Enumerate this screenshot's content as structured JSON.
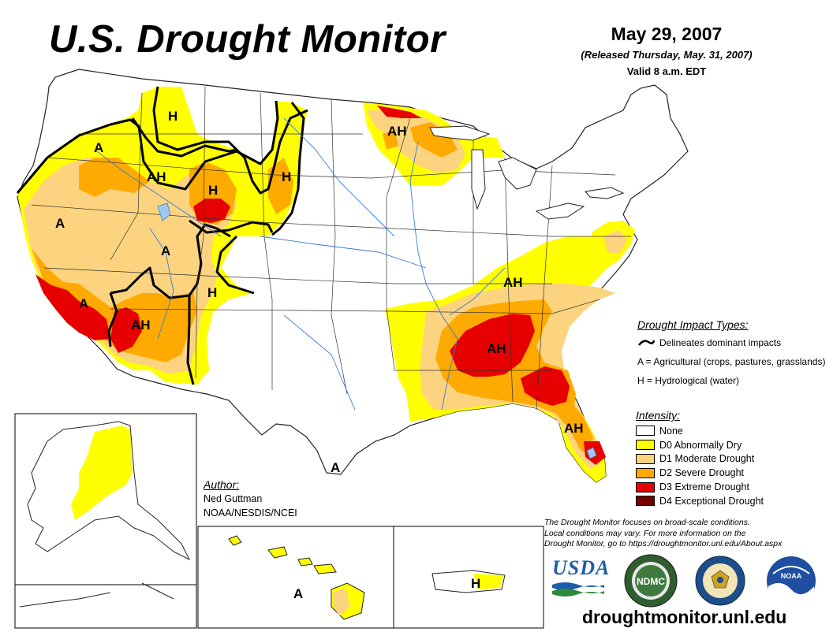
{
  "header": {
    "title": "U.S. Drought Monitor",
    "map_date": "May 29, 2007",
    "released": "(Released Thursday, May. 31, 2007)",
    "valid": "Valid 8 a.m. EDT"
  },
  "map_labels": {
    "conus": [
      "H",
      "A",
      "AH",
      "H",
      "H",
      "AH",
      "A",
      "A",
      "A",
      "H",
      "AH",
      "AH",
      "AH",
      "AH",
      "A"
    ],
    "hawaii": "A",
    "puerto_rico": "H"
  },
  "impact_types": {
    "heading": "Drought Impact Types:",
    "delineates": "Delineates dominant impacts",
    "agricultural": "A = Agricultural (crops, pastures, grasslands)",
    "hydrological": "H = Hydrological (water)"
  },
  "intensity": {
    "heading": "Intensity:",
    "items": [
      {
        "label": "None",
        "color": "#ffffff"
      },
      {
        "label": "D0 Abnormally Dry",
        "color": "#ffff00"
      },
      {
        "label": "D1 Moderate Drought",
        "color": "#fcd37f"
      },
      {
        "label": "D2 Severe Drought",
        "color": "#ffaa00"
      },
      {
        "label": "D3 Extreme Drought",
        "color": "#e60000"
      },
      {
        "label": "D4 Exceptional Drought",
        "color": "#730000"
      }
    ]
  },
  "author": {
    "heading": "Author:",
    "name": "Ned Guttman",
    "org": "NOAA/NESDIS/NCEI"
  },
  "disclaimer": {
    "line1": "The Drought Monitor focuses on broad-scale conditions.",
    "line2": "Local conditions may vary. For more information on the",
    "line3": "Drought Monitor, go to https://droughtmonitor.unl.edu/About.aspx"
  },
  "logos": {
    "usda": "USDA",
    "ndmc": "NDMC",
    "noaa": "NOAA"
  },
  "website": "droughtmonitor.unl.edu"
}
